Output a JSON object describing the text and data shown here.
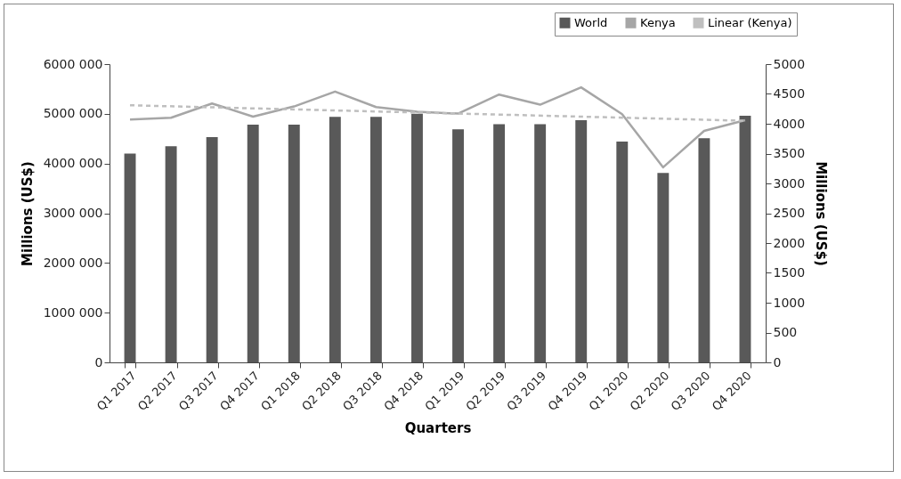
{
  "chart_data": {
    "type": "bar",
    "xlabel": "Quarters",
    "ylabel": "Millions (US$)",
    "y2label": "Millions (US$)",
    "categories": [
      "Q1 2017",
      "Q2 2017",
      "Q3 2017",
      "Q4 2017",
      "Q1 2018",
      "Q2 2018",
      "Q3 2018",
      "Q4 2018",
      "Q1 2019",
      "Q2 2019",
      "Q3 2019",
      "Q4 2019",
      "Q1 2020",
      "Q2 2020",
      "Q3 2020",
      "Q4 2020"
    ],
    "series": [
      {
        "name": "World",
        "color": "#595959",
        "values": [
          4200000,
          4350000,
          4530000,
          4780000,
          4780000,
          4940000,
          4940000,
          5000000,
          4690000,
          4790000,
          4790000,
          4870000,
          4440000,
          3810000,
          4510000,
          4960000
        ]
      },
      {
        "name": "Kenya",
        "type": "line",
        "axis": "y2",
        "color": "#a6a6a6",
        "line_style": "solid",
        "values": [
          4070,
          4100,
          4340,
          4120,
          4290,
          4540,
          4280,
          4200,
          4170,
          4490,
          4320,
          4610,
          4160,
          3270,
          3880,
          4060
        ]
      },
      {
        "name": "Linear (Kenya)",
        "type": "line",
        "axis": "y2",
        "color": "#bfbfbf",
        "line_style": "dashed",
        "x": [
          "Q1 2017",
          "Q4 2020"
        ],
        "values": [
          4310,
          4050
        ]
      }
    ],
    "ylim": [
      0,
      6000000
    ],
    "yticks": [
      0,
      {
        "value": 1000000,
        "label": "1000 000"
      },
      {
        "value": 2000000,
        "label": "2000 000"
      },
      {
        "value": 3000000,
        "label": "3000 000"
      },
      {
        "value": 4000000,
        "label": "4000 000"
      },
      {
        "value": 5000000,
        "label": "5000 000"
      },
      {
        "value": 6000000,
        "label": "6000 000"
      }
    ],
    "y2lim": [
      0,
      5000
    ],
    "y2ticks": [
      0,
      500,
      1000,
      1500,
      2000,
      2500,
      3000,
      3500,
      4000,
      4500,
      5000
    ],
    "grid": false,
    "legend": "top right"
  }
}
